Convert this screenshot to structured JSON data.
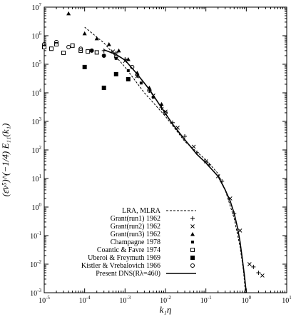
{
  "chart_data": {
    "type": "scatter",
    "title": "",
    "xscale": "log",
    "yscale": "log",
    "xlim": [
      1e-05,
      10
    ],
    "ylim": [
      0.001,
      10000000.0
    ],
    "grid": false,
    "legend_position": "bottom-left",
    "xlabel": "k₁η",
    "ylabel": "(ε̄ν⁵)^(−1/4) E₁₁(k₁)",
    "x_tick_labels": [
      {
        "value": 1e-05,
        "exp": "-5"
      },
      {
        "value": 0.0001,
        "exp": "-4"
      },
      {
        "value": 0.001,
        "exp": "-3"
      },
      {
        "value": 0.01,
        "exp": "-2"
      },
      {
        "value": 0.1,
        "exp": "-1"
      },
      {
        "value": 1,
        "exp": "0"
      },
      {
        "value": 10,
        "exp": "1"
      }
    ],
    "y_tick_labels": [
      {
        "value": 0.001,
        "exp": "-3"
      },
      {
        "value": 0.01,
        "exp": "-2"
      },
      {
        "value": 0.1,
        "exp": "-1"
      },
      {
        "value": 1,
        "exp": "0"
      },
      {
        "value": 10,
        "exp": "1"
      },
      {
        "value": 100,
        "exp": "2"
      },
      {
        "value": 1000,
        "exp": "3"
      },
      {
        "value": 10000.0,
        "exp": "4"
      },
      {
        "value": 100000.0,
        "exp": "5"
      },
      {
        "value": 1000000.0,
        "exp": "6"
      },
      {
        "value": 10000000.0,
        "exp": "7"
      }
    ],
    "tick_base": "10",
    "series": [
      {
        "name": "LRA, MLRA",
        "style": "dashed-line",
        "x": [
          0.0001,
          0.0003,
          0.001,
          0.003,
          0.01,
          0.03,
          0.1,
          0.2,
          0.3,
          0.5,
          0.7,
          0.85,
          0.95
        ],
        "y": [
          2000000.0,
          560000.0,
          80000.0,
          10000.0,
          1500.0,
          200,
          45,
          15,
          4,
          0.4,
          0.04,
          0.006,
          0.001
        ]
      },
      {
        "name": "Grant(run1) 1962",
        "marker": "plus",
        "x": [
          0.0003,
          0.0006,
          0.001,
          0.002,
          0.004,
          0.008,
          0.015,
          0.03,
          0.06,
          0.12,
          0.25,
          0.5,
          1.5,
          2.0
        ],
        "y": [
          300000.0,
          250000.0,
          150000.0,
          40000.0,
          12000.0,
          3000.0,
          900,
          300,
          80,
          30,
          8,
          0.6,
          0.008,
          0.005
        ]
      },
      {
        "name": "Grant(run2) 1962",
        "marker": "cross",
        "x": [
          0.0005,
          0.001,
          0.002,
          0.005,
          0.01,
          0.02,
          0.05,
          0.1,
          0.2,
          0.4,
          0.7,
          1.2,
          2.5
        ],
        "y": [
          280000.0,
          130000.0,
          38000.0,
          8000.0,
          2200.0,
          600,
          130,
          40,
          12,
          2,
          0.15,
          0.01,
          0.004
        ]
      },
      {
        "name": "Grant(run3) 1962",
        "marker": "triangle",
        "x": [
          4e-05,
          0.0001,
          0.0002,
          0.0004,
          0.0007,
          0.0012,
          0.002,
          0.004,
          0.008
        ],
        "y": [
          6000000.0,
          1200000.0,
          800000.0,
          500000.0,
          300000.0,
          150000.0,
          50000.0,
          15000.0,
          4000.0
        ]
      },
      {
        "name": "Champagne 1978",
        "marker": "square-filled",
        "x": [
          0.00015,
          0.0003,
          0.0006,
          0.0012,
          0.0025,
          0.005
        ],
        "y": [
          300000.0,
          200000.0,
          160000.0,
          60000.0,
          22000.0,
          7000.0
        ]
      },
      {
        "name": "Coantic & Favre 1974",
        "marker": "square-open",
        "x": [
          1e-05,
          1.5e-05,
          2e-05,
          3e-05,
          5e-05,
          8e-05,
          0.00012,
          0.0002
        ],
        "y": [
          400000.0,
          350000.0,
          500000.0,
          250000.0,
          450000.0,
          300000.0,
          280000.0,
          260000.0
        ]
      },
      {
        "name": "Uberoi & Freymuth 1969",
        "marker": "square-filled-large",
        "x": [
          0.0001,
          0.0003,
          0.0006,
          0.0012
        ],
        "y": [
          80000.0,
          15000.0,
          45000.0,
          30000.0
        ]
      },
      {
        "name": "Kistler & Vrebalovich 1966",
        "marker": "circle-open",
        "x": [
          1e-05,
          2e-05,
          4e-05,
          8e-05,
          0.00015,
          0.0003,
          0.0006,
          0.0015,
          0.004,
          0.01
        ],
        "y": [
          500000.0,
          600000.0,
          400000.0,
          350000.0,
          300000.0,
          200000.0,
          180000.0,
          80000.0,
          12000.0,
          2000.0
        ]
      },
      {
        "name": "Present DNS(Rλ=460)",
        "style": "solid-line",
        "x": [
          0.0003,
          0.0006,
          0.001,
          0.002,
          0.004,
          0.008,
          0.015,
          0.03,
          0.06,
          0.1,
          0.2,
          0.3,
          0.4,
          0.5,
          0.6,
          0.7,
          0.8,
          0.9,
          1.0
        ],
        "y": [
          320000.0,
          220000.0,
          140000.0,
          45000.0,
          13000.0,
          3000.0,
          800,
          230,
          70,
          35,
          12,
          4,
          1.6,
          0.6,
          0.2,
          0.06,
          0.015,
          0.004,
          0.001
        ]
      }
    ]
  }
}
